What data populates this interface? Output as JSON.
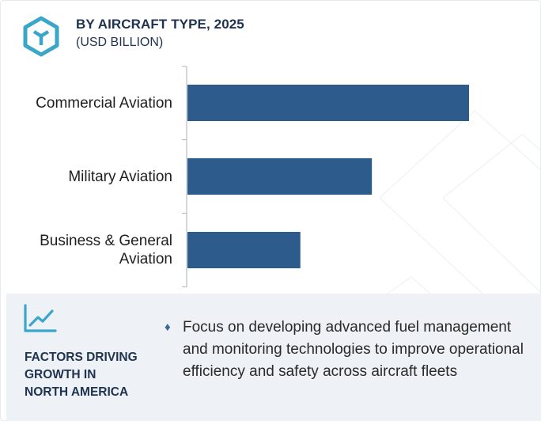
{
  "header": {
    "icon": "hexagon-cube-logo-icon",
    "title": "BY AIRCRAFT TYPE, 2025",
    "subtitle": "(USD BILLION)"
  },
  "chart_data": {
    "type": "bar",
    "orientation": "horizontal",
    "title": "BY AIRCRAFT TYPE, 2025",
    "subtitle": "(USD BILLION)",
    "xlabel": "",
    "ylabel": "",
    "categories": [
      "Commercial Aviation",
      "Military Aviation",
      "Business & General Aviation"
    ],
    "values": [
      100,
      65.5,
      40.1
    ],
    "grid": false,
    "bar_color": "#2d5c8c",
    "axis_color": "#b9bec6",
    "value_scale": "relative, unlabeled axis"
  },
  "factors": {
    "icon": "trend-line-chart-icon",
    "heading": "FACTORS DRIVING\nGROWTH IN\nNORTH AMERICA",
    "bullet_icon": "diamond-bullet-icon",
    "text": "Focus on developing advanced fuel management and monitoring technologies to improve operational efficiency and safety across aircraft fleets"
  },
  "colors": {
    "accent": "#3aa6c9",
    "heading": "#1f3250",
    "bar": "#2d5c8c",
    "panel": "#eef1f5"
  }
}
